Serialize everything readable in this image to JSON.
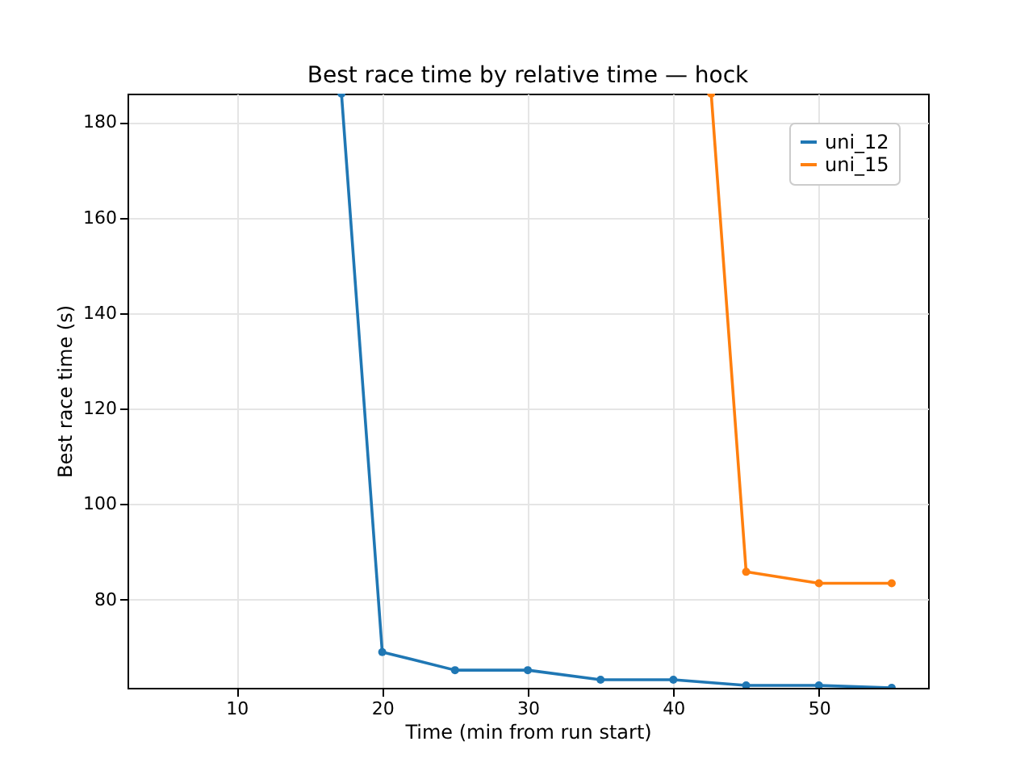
{
  "chart_data": {
    "type": "line",
    "title": "Best race time by relative time — hock",
    "xlabel": "Time (min from run start)",
    "ylabel": "Best race time (s)",
    "series": [
      {
        "name": "uni_12",
        "color": "#1f77b4",
        "x": [
          17.2,
          20,
          25,
          30,
          35,
          40,
          45,
          50,
          55
        ],
        "values": [
          186,
          69,
          65.2,
          65.2,
          63.2,
          63.2,
          62,
          62,
          61.5
        ]
      },
      {
        "name": "uni_15",
        "color": "#ff7f0e",
        "x": [
          42.6,
          45,
          50,
          55
        ],
        "values": [
          186,
          85.8,
          83.4,
          83.4
        ]
      }
    ],
    "xlim": [
      2.5,
      57.5
    ],
    "xticks": [
      10,
      20,
      30,
      40,
      50
    ],
    "ylim": [
      61.5,
      186
    ],
    "yticks": [
      80,
      100,
      120,
      140,
      160,
      180
    ],
    "grid": true,
    "legend": "top right",
    "marker": "circle",
    "line_style": "solid"
  }
}
